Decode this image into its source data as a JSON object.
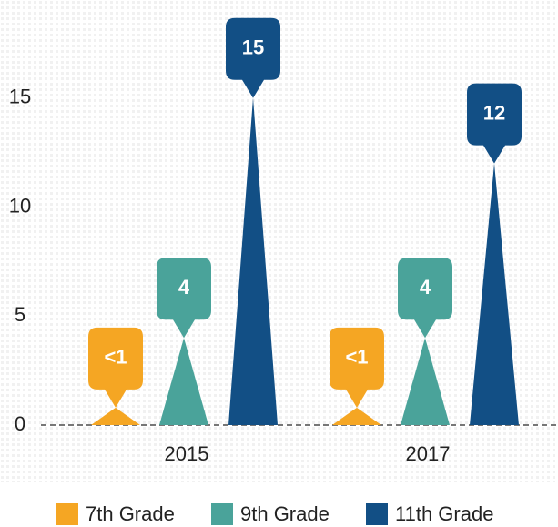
{
  "chart_data": {
    "type": "spike",
    "categories": [
      "2015",
      "2017"
    ],
    "series": [
      {
        "name": "7th Grade",
        "color": "#f5a623",
        "values": [
          0.8,
          0.8
        ],
        "value_labels": [
          "<1",
          "<1"
        ]
      },
      {
        "name": "9th Grade",
        "color": "#4aa39a",
        "values": [
          4,
          4
        ]
      },
      {
        "name": "11th Grade",
        "color": "#124f85",
        "values": [
          15,
          12
        ]
      }
    ],
    "ylim": [
      0,
      19.5
    ],
    "yticks": [
      0,
      5,
      10,
      15
    ],
    "legend": "bottom"
  }
}
